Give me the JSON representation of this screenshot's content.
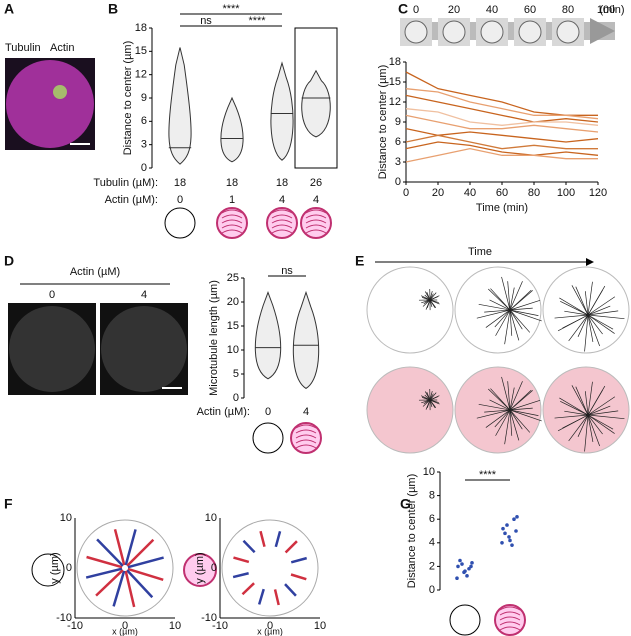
{
  "panels": {
    "A": {
      "letter": "A",
      "stain_1": "Tubulin",
      "stain_2": "Actin"
    },
    "B": {
      "letter": "B",
      "y_label": "Distance to center (µm)",
      "ylim": [
        0,
        18
      ],
      "yticks": [
        0,
        3,
        6,
        9,
        12,
        15,
        18
      ],
      "significance": [
        "****",
        "ns",
        "****"
      ],
      "tubulin_label": "Tubulin (µM):",
      "actin_label": "Actin (µM):",
      "tubulin": [
        18,
        18,
        18,
        26
      ],
      "actin": [
        0,
        1,
        4,
        4
      ],
      "violins": [
        {
          "min": 0.5,
          "max": 15.5,
          "median": 2.6
        },
        {
          "min": 0.8,
          "max": 9,
          "median": 3.8
        },
        {
          "min": 1,
          "max": 13.5,
          "median": 7
        },
        {
          "min": 4,
          "max": 12.5,
          "median": 9
        }
      ]
    },
    "C": {
      "letter": "C",
      "time_labels": [
        0,
        20,
        40,
        60,
        80,
        100
      ],
      "time_unit": "(min)",
      "y_label": "Distance to center (µm)",
      "x_label": "Time (min)",
      "xlim": [
        0,
        120
      ],
      "xticks": [
        0,
        20,
        40,
        60,
        80,
        100,
        120
      ],
      "ylim": [
        0,
        18
      ],
      "yticks": [
        0,
        3,
        6,
        9,
        12,
        15,
        18
      ],
      "x": [
        0,
        20,
        40,
        60,
        80,
        100,
        120
      ],
      "series": [
        {
          "color": "#c8641e",
          "values": [
            16.5,
            14,
            13,
            12,
            10.5,
            10,
            10
          ]
        },
        {
          "color": "#e8a070",
          "values": [
            14,
            13.5,
            12,
            11,
            10,
            10,
            9.5
          ]
        },
        {
          "color": "#c8641e",
          "values": [
            13,
            12,
            11,
            10,
            9,
            9.5,
            9
          ]
        },
        {
          "color": "#f0c0a0",
          "values": [
            11,
            10.5,
            9,
            8.5,
            9,
            9,
            8.5
          ]
        },
        {
          "color": "#e8a070",
          "values": [
            10,
            9,
            8,
            8,
            8.5,
            8,
            7.5
          ]
        },
        {
          "color": "#c8641e",
          "values": [
            8,
            7,
            7.5,
            7,
            6.5,
            6,
            6.5
          ]
        },
        {
          "color": "#d07a3a",
          "values": [
            6,
            7,
            6,
            5,
            5.5,
            5,
            5
          ]
        },
        {
          "color": "#c8641e",
          "values": [
            5,
            6,
            5.5,
            4.5,
            4,
            4.5,
            4
          ]
        },
        {
          "color": "#e8a070",
          "values": [
            3,
            4,
            5,
            4,
            4,
            3.5,
            3.5
          ]
        }
      ]
    },
    "D": {
      "letter": "D",
      "header": "Actin (µM)",
      "image_labels": [
        0,
        4
      ],
      "y_label": "Microtubule length (µm)",
      "ylim": [
        0,
        25
      ],
      "yticks": [
        0,
        5,
        10,
        15,
        20,
        25
      ],
      "significance": "ns",
      "actin_label": "Actin (µM):",
      "actin": [
        0,
        4
      ],
      "violins": [
        {
          "min": 4,
          "max": 22,
          "median": 10.5
        },
        {
          "min": 2,
          "max": 22,
          "median": 11
        }
      ]
    },
    "E": {
      "letter": "E",
      "time": "Time"
    },
    "F": {
      "letter": "F",
      "x_label": "x (µm)",
      "y_label": "y (µm)",
      "ticks": [
        -10,
        0,
        10
      ]
    },
    "G": {
      "letter": "G",
      "y_label": "Distance to center (µm)",
      "ylim": [
        0,
        10
      ],
      "yticks": [
        0,
        2,
        4,
        6,
        8,
        10
      ],
      "significance": "****",
      "groups": [
        [
          1,
          1.5,
          2,
          2.2,
          1.8,
          2.5,
          1.2,
          2.0,
          1.6,
          2.3
        ],
        [
          4,
          4.5,
          5,
          5.5,
          6,
          4.8,
          3.8,
          5.2,
          4.2,
          6.2
        ]
      ]
    }
  }
}
